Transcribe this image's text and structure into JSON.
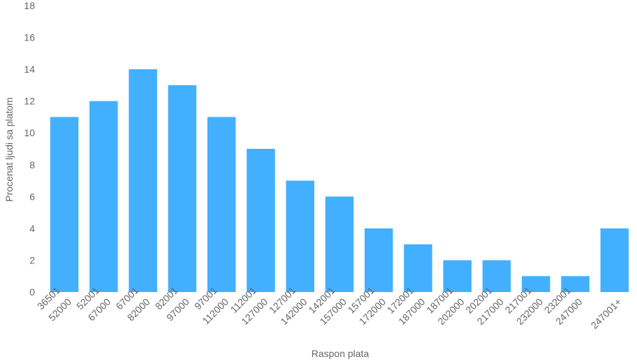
{
  "chart_data": {
    "type": "bar",
    "title": "",
    "xlabel": "Raspon plata",
    "ylabel": "Procenat ljudi sa platom",
    "ylim": [
      0,
      18
    ],
    "yticks": [
      0,
      2,
      4,
      6,
      8,
      10,
      12,
      14,
      16,
      18
    ],
    "grid": false,
    "bar_color": "#42b0ff",
    "categories": [
      [
        "36501",
        "52000"
      ],
      [
        "52001",
        "67000"
      ],
      [
        "67001",
        "82000"
      ],
      [
        "82001",
        "97000"
      ],
      [
        "97001",
        "112000"
      ],
      [
        "112001",
        "127000"
      ],
      [
        "127001",
        "142000"
      ],
      [
        "142001",
        "157000"
      ],
      [
        "157001",
        "172000"
      ],
      [
        "172001",
        "187000"
      ],
      [
        "187001",
        "202000"
      ],
      [
        "202001",
        "217000"
      ],
      [
        "217001",
        "232000"
      ],
      [
        "232001",
        "247000"
      ],
      [
        "247001+"
      ]
    ],
    "values": [
      11,
      12,
      14,
      13,
      11,
      9,
      7,
      6,
      4,
      3,
      2,
      2,
      1,
      1,
      4
    ]
  }
}
